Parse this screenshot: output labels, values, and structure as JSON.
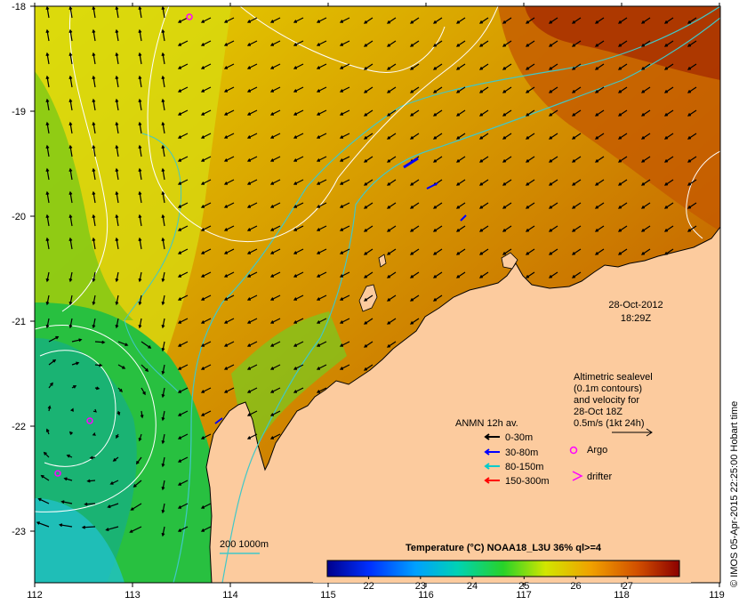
{
  "axes": {
    "x_ticks": [
      "112",
      "113",
      "114",
      "115",
      "116",
      "117",
      "118",
      "119"
    ],
    "y_ticks": [
      "-18",
      "-19",
      "-20",
      "-21",
      "-22",
      "-23"
    ],
    "lon_range": [
      112,
      119
    ],
    "lat_range": [
      -23.5,
      -18
    ]
  },
  "timestamp": {
    "date": "28-Oct-2012",
    "time": "18:29Z"
  },
  "altimetry_note": {
    "line1": "Altimetric sealevel",
    "line2": "(0.1m contours)",
    "line3": "and velocity for",
    "line4": "28-Oct 18Z",
    "line5": "0.5m/s (1kt 24h)"
  },
  "legend": {
    "title": "ANMN 12h av.",
    "items": [
      {
        "label": "0-30m",
        "color": "#000000"
      },
      {
        "label": "30-80m",
        "color": "#0000ff"
      },
      {
        "label": "80-150m",
        "color": "#00cccc"
      },
      {
        "label": "150-300m",
        "color": "#ff0000"
      }
    ],
    "argo_label": "Argo",
    "drifter_label": "drifter",
    "argo_color": "#ff00ff",
    "drifter_color": "#ff00ff"
  },
  "bathymetry_label": "200  1000m",
  "colorbar": {
    "title": "Temperature (°C) NOAA18_L3U 36% ql>=4",
    "ticks": [
      "22",
      "23",
      "24",
      "25",
      "26",
      "27"
    ],
    "tick_values": [
      22,
      23,
      24,
      25,
      26,
      27
    ],
    "range": [
      21.2,
      28
    ]
  },
  "credit": "© IMOS 05-Apr-2015 22:25:00 Hobart time",
  "colors": {
    "land": "#fccb9e",
    "contour": "#ffffff",
    "bathymetry": "#40c8c8"
  }
}
